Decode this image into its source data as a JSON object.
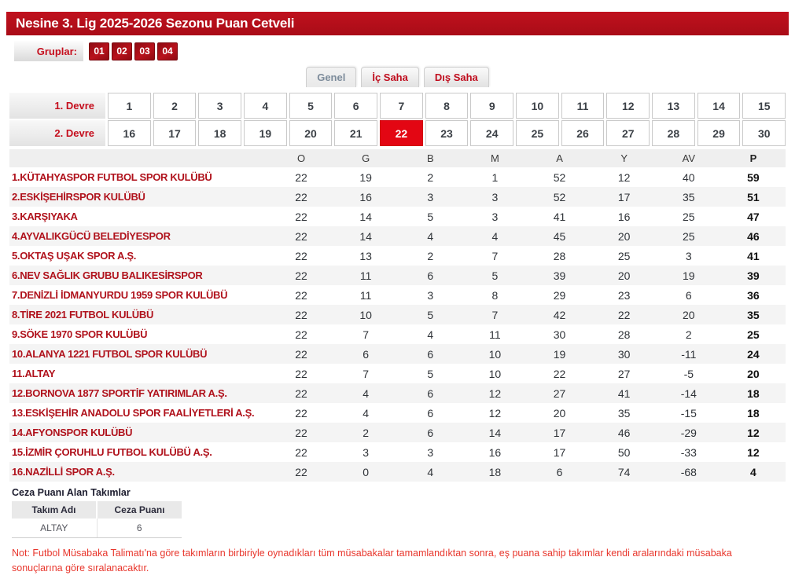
{
  "header": {
    "title": "Nesine 3. Lig 2025-2026 Sezonu Puan Cetveli"
  },
  "groups": {
    "label": "Gruplar:",
    "items": [
      "01",
      "02",
      "03",
      "04"
    ]
  },
  "tabs": [
    {
      "id": "genel",
      "label": "Genel",
      "active": true
    },
    {
      "id": "ic-saha",
      "label": "İç Saha",
      "active": false
    },
    {
      "id": "dis-saha",
      "label": "Dış Saha",
      "active": false
    }
  ],
  "week_selector": {
    "selected_week": 22,
    "rows": [
      {
        "label": "1. Devre",
        "weeks": [
          1,
          2,
          3,
          4,
          5,
          6,
          7,
          8,
          9,
          10,
          11,
          12,
          13,
          14,
          15
        ]
      },
      {
        "label": "2. Devre",
        "weeks": [
          16,
          17,
          18,
          19,
          20,
          21,
          22,
          23,
          24,
          25,
          26,
          27,
          28,
          29,
          30
        ]
      }
    ]
  },
  "standings": {
    "columns": [
      "O",
      "G",
      "B",
      "M",
      "A",
      "Y",
      "AV",
      "P"
    ],
    "teams": [
      {
        "name": "1.KÜTAHYASPOR FUTBOL SPOR KULÜBÜ",
        "stats": [
          22,
          19,
          2,
          1,
          52,
          12,
          40,
          59
        ]
      },
      {
        "name": "2.ESKİŞEHİRSPOR KULÜBÜ",
        "stats": [
          22,
          16,
          3,
          3,
          52,
          17,
          35,
          51
        ]
      },
      {
        "name": "3.KARŞIYAKA",
        "stats": [
          22,
          14,
          5,
          3,
          41,
          16,
          25,
          47
        ]
      },
      {
        "name": "4.AYVALIKGÜCÜ BELEDİYESPOR",
        "stats": [
          22,
          14,
          4,
          4,
          45,
          20,
          25,
          46
        ]
      },
      {
        "name": "5.OKTAŞ UŞAK SPOR A.Ş.",
        "stats": [
          22,
          13,
          2,
          7,
          28,
          25,
          3,
          41
        ]
      },
      {
        "name": "6.NEV SAĞLIK GRUBU BALIKESİRSPOR",
        "stats": [
          22,
          11,
          6,
          5,
          39,
          20,
          19,
          39
        ]
      },
      {
        "name": "7.DENİZLİ İDMANYURDU 1959 SPOR KULÜBÜ",
        "stats": [
          22,
          11,
          3,
          8,
          29,
          23,
          6,
          36
        ]
      },
      {
        "name": "8.TİRE 2021 FUTBOL KULÜBÜ",
        "stats": [
          22,
          10,
          5,
          7,
          42,
          22,
          20,
          35
        ]
      },
      {
        "name": "9.SÖKE 1970 SPOR KULÜBÜ",
        "stats": [
          22,
          7,
          4,
          11,
          30,
          28,
          2,
          25
        ]
      },
      {
        "name": "10.ALANYA 1221 FUTBOL SPOR KULÜBÜ",
        "stats": [
          22,
          6,
          6,
          10,
          19,
          30,
          -11,
          24
        ]
      },
      {
        "name": "11.ALTAY",
        "stats": [
          22,
          7,
          5,
          10,
          22,
          27,
          -5,
          20
        ]
      },
      {
        "name": "12.BORNOVA 1877 SPORTİF YATIRIMLAR A.Ş.",
        "stats": [
          22,
          4,
          6,
          12,
          27,
          41,
          -14,
          18
        ]
      },
      {
        "name": "13.ESKİŞEHİR ANADOLU SPOR FAALİYETLERİ A.Ş.",
        "stats": [
          22,
          4,
          6,
          12,
          20,
          35,
          -15,
          18
        ]
      },
      {
        "name": "14.AFYONSPOR KULÜBÜ",
        "stats": [
          22,
          2,
          6,
          14,
          17,
          46,
          -29,
          12
        ]
      },
      {
        "name": "15.İZMİR ÇORUHLU FUTBOL KULÜBÜ A.Ş.",
        "stats": [
          22,
          3,
          3,
          16,
          17,
          50,
          -33,
          12
        ]
      },
      {
        "name": "16.NAZİLLİ SPOR A.Ş.",
        "stats": [
          22,
          0,
          4,
          18,
          6,
          74,
          -68,
          4
        ]
      }
    ]
  },
  "penalty": {
    "title": "Ceza Puanı Alan Takımlar",
    "columns": [
      "Takım Adı",
      "Ceza Puanı"
    ],
    "rows": [
      {
        "team": "ALTAY",
        "points": "6"
      }
    ]
  },
  "note": "Not: Futbol Müsabaka Talimatı'na göre takımların birbiriyle oynadıkları tüm müsabakalar tamamlandıktan sonra, eş puana sahip takımlar kendi aralarındaki müsabaka sonuçlarına göre sıralanacaktır.",
  "colors": {
    "primary_red": "#b0121c",
    "highlight_red": "#e30613",
    "note_red": "#e8362c",
    "header_grey": "#efefef",
    "alt_row_grey": "#f4f4f4"
  }
}
